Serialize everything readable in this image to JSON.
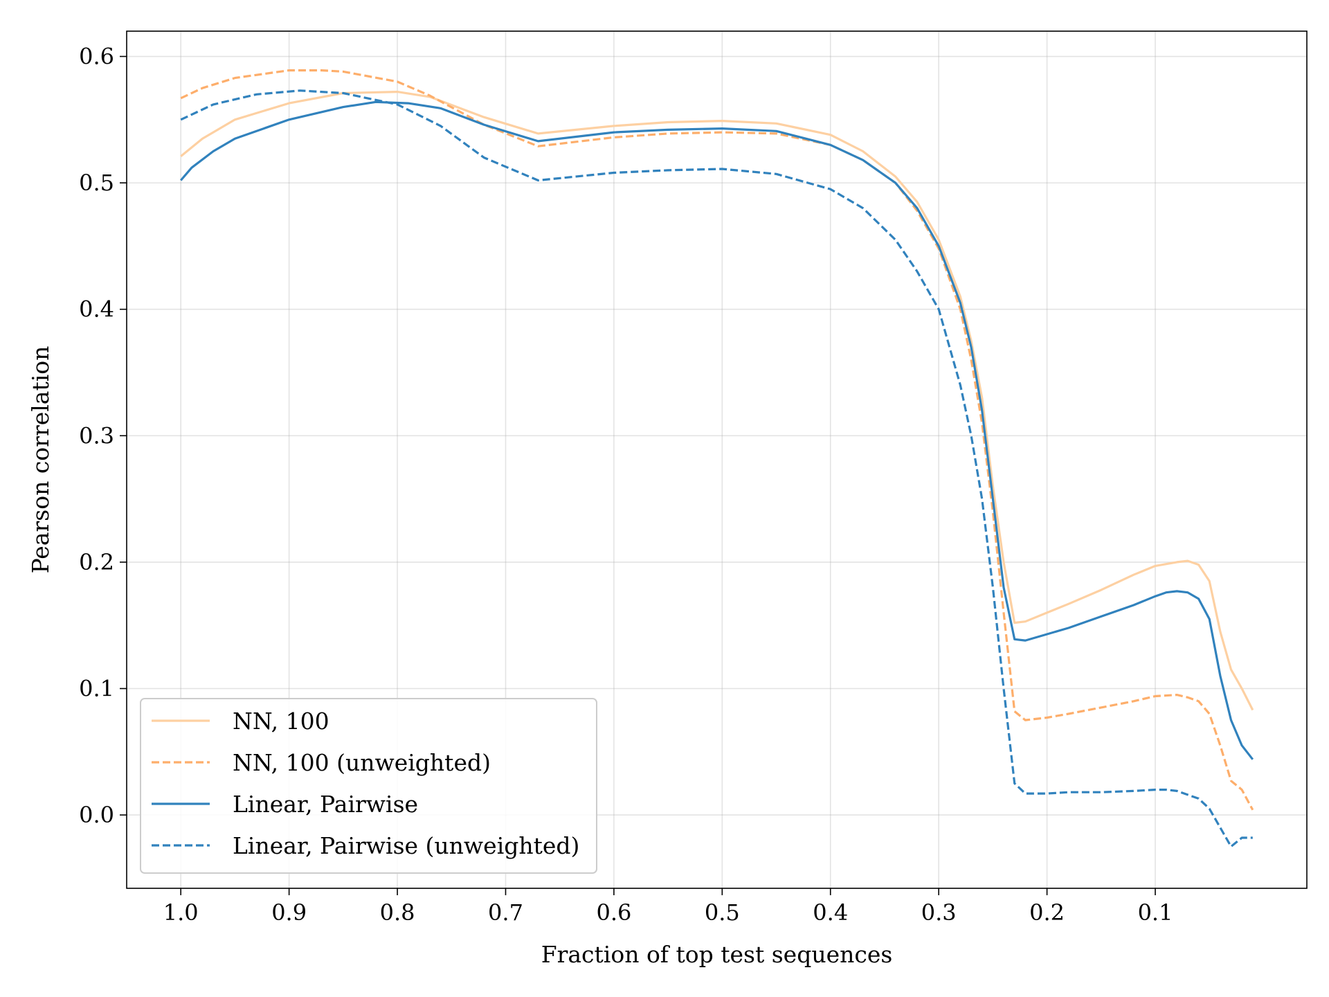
{
  "chart_data": {
    "type": "line",
    "xlabel": "Fraction of top test sequences",
    "ylabel": "Pearson correlation",
    "xlim": [
      1.05,
      -0.04
    ],
    "ylim": [
      -0.058,
      0.62
    ],
    "x_reversed": true,
    "grid": true,
    "legend_position": "lower-left",
    "x_ticks": [
      1.0,
      0.9,
      0.8,
      0.7,
      0.6,
      0.5,
      0.4,
      0.3,
      0.2,
      0.1
    ],
    "x_tick_labels": [
      "1.0",
      "0.9",
      "0.8",
      "0.7",
      "0.6",
      "0.5",
      "0.4",
      "0.3",
      "0.2",
      "0.1"
    ],
    "y_ticks": [
      0.0,
      0.1,
      0.2,
      0.3,
      0.4,
      0.5,
      0.6
    ],
    "y_tick_labels": [
      "0.0",
      "0.1",
      "0.2",
      "0.3",
      "0.4",
      "0.5",
      "0.6"
    ],
    "series": [
      {
        "name": "NN, 100",
        "color": "#fdd0a2",
        "dash": "solid",
        "x": [
          1.0,
          0.98,
          0.95,
          0.9,
          0.85,
          0.8,
          0.77,
          0.72,
          0.67,
          0.6,
          0.55,
          0.5,
          0.45,
          0.4,
          0.37,
          0.34,
          0.32,
          0.3,
          0.28,
          0.27,
          0.26,
          0.25,
          0.24,
          0.23,
          0.22,
          0.2,
          0.18,
          0.15,
          0.12,
          0.1,
          0.08,
          0.07,
          0.06,
          0.05,
          0.04,
          0.03,
          0.02,
          0.01
        ],
        "y": [
          0.521,
          0.535,
          0.55,
          0.563,
          0.571,
          0.572,
          0.568,
          0.552,
          0.539,
          0.545,
          0.548,
          0.549,
          0.547,
          0.538,
          0.525,
          0.505,
          0.485,
          0.455,
          0.41,
          0.375,
          0.33,
          0.26,
          0.2,
          0.152,
          0.153,
          0.16,
          0.167,
          0.178,
          0.19,
          0.197,
          0.2,
          0.201,
          0.198,
          0.185,
          0.145,
          0.115,
          0.1,
          0.083
        ]
      },
      {
        "name": "NN, 100 (unweighted)",
        "color": "#fdae6b",
        "dash": "dashed",
        "x": [
          1.0,
          0.98,
          0.95,
          0.9,
          0.87,
          0.85,
          0.8,
          0.77,
          0.72,
          0.67,
          0.6,
          0.55,
          0.5,
          0.45,
          0.4,
          0.37,
          0.34,
          0.32,
          0.3,
          0.28,
          0.27,
          0.26,
          0.25,
          0.24,
          0.23,
          0.22,
          0.2,
          0.18,
          0.15,
          0.12,
          0.1,
          0.08,
          0.07,
          0.06,
          0.05,
          0.04,
          0.03,
          0.02,
          0.01
        ],
        "y": [
          0.567,
          0.575,
          0.583,
          0.589,
          0.589,
          0.588,
          0.58,
          0.569,
          0.546,
          0.529,
          0.536,
          0.539,
          0.54,
          0.539,
          0.53,
          0.518,
          0.5,
          0.478,
          0.448,
          0.4,
          0.36,
          0.31,
          0.24,
          0.16,
          0.082,
          0.075,
          0.077,
          0.08,
          0.085,
          0.09,
          0.094,
          0.095,
          0.093,
          0.09,
          0.08,
          0.055,
          0.027,
          0.02,
          0.004
        ]
      },
      {
        "name": "Linear, Pairwise",
        "color": "#3182bd",
        "dash": "solid",
        "x": [
          1.0,
          0.99,
          0.97,
          0.95,
          0.9,
          0.85,
          0.82,
          0.79,
          0.76,
          0.72,
          0.67,
          0.6,
          0.55,
          0.5,
          0.45,
          0.4,
          0.37,
          0.34,
          0.32,
          0.3,
          0.28,
          0.27,
          0.26,
          0.25,
          0.24,
          0.23,
          0.22,
          0.2,
          0.18,
          0.15,
          0.12,
          0.1,
          0.09,
          0.08,
          0.07,
          0.06,
          0.05,
          0.04,
          0.03,
          0.02,
          0.01
        ],
        "y": [
          0.502,
          0.512,
          0.525,
          0.535,
          0.55,
          0.56,
          0.564,
          0.563,
          0.559,
          0.546,
          0.533,
          0.54,
          0.542,
          0.543,
          0.541,
          0.53,
          0.518,
          0.5,
          0.48,
          0.45,
          0.405,
          0.37,
          0.32,
          0.25,
          0.18,
          0.139,
          0.138,
          0.143,
          0.148,
          0.157,
          0.166,
          0.173,
          0.176,
          0.177,
          0.176,
          0.171,
          0.155,
          0.11,
          0.075,
          0.055,
          0.044
        ]
      },
      {
        "name": "Linear, Pairwise (unweighted)",
        "color": "#3182bd",
        "dash": "dashed",
        "x": [
          1.0,
          0.97,
          0.93,
          0.89,
          0.85,
          0.8,
          0.76,
          0.72,
          0.67,
          0.6,
          0.55,
          0.5,
          0.45,
          0.4,
          0.37,
          0.34,
          0.32,
          0.3,
          0.29,
          0.28,
          0.27,
          0.26,
          0.25,
          0.24,
          0.23,
          0.22,
          0.2,
          0.18,
          0.15,
          0.12,
          0.1,
          0.09,
          0.08,
          0.07,
          0.06,
          0.05,
          0.04,
          0.03,
          0.02,
          0.01
        ],
        "y": [
          0.55,
          0.562,
          0.57,
          0.573,
          0.571,
          0.562,
          0.545,
          0.52,
          0.502,
          0.508,
          0.51,
          0.511,
          0.507,
          0.495,
          0.48,
          0.455,
          0.43,
          0.4,
          0.37,
          0.34,
          0.3,
          0.25,
          0.18,
          0.1,
          0.025,
          0.017,
          0.017,
          0.018,
          0.018,
          0.019,
          0.02,
          0.02,
          0.019,
          0.016,
          0.013,
          0.005,
          -0.01,
          -0.025,
          -0.018,
          -0.018
        ]
      }
    ]
  }
}
